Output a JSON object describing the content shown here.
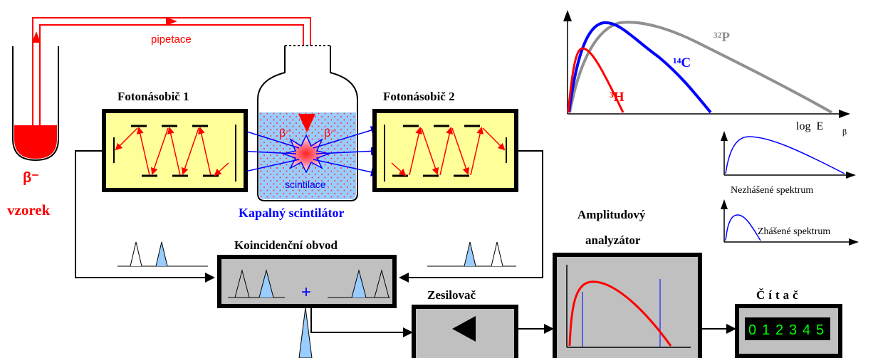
{
  "labels": {
    "pipetace": "pipetace",
    "beta_minus": "β⁻",
    "vzorek": "vzorek",
    "pm1": "Fotonásobič 1",
    "pm2": "Fotonásobič 2",
    "beta_left": "β⁻",
    "beta_right": "β⁻",
    "scintilace": "scintilace",
    "kapalny": "Kapalný scintilátor",
    "koincidencni": "Koincidenční obvod",
    "plus": "+",
    "zesilovac": "Zesilovač",
    "amplitudovy": "Amplitudový",
    "analyzator": "analyzátor",
    "citac": "Čítač",
    "counter_digits": [
      "0",
      "1",
      "2",
      "3",
      "4",
      "5"
    ],
    "h3": "³H",
    "c14": "¹⁴C",
    "p32": "³²P",
    "log_e": "log  E",
    "beta_sub": "β",
    "nezhasene": "Nezhášené spektrum",
    "zhasene": "Zhášené spektrum"
  },
  "colors": {
    "red": "#ff0000",
    "blue": "#0000ff",
    "gray": "#909090",
    "pm_fill": "#ffff99",
    "box_gray": "#c0c0c0",
    "liquid": "#99ccff",
    "pulse": "#99ccff",
    "digit_green": "#00ff00"
  }
}
